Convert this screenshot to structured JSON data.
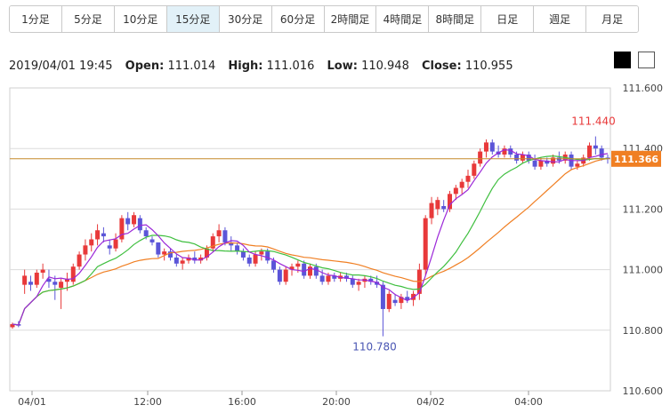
{
  "timeframes": [
    {
      "label": "1分足"
    },
    {
      "label": "5分足"
    },
    {
      "label": "10分足"
    },
    {
      "label": "15分足",
      "active": true
    },
    {
      "label": "30分足"
    },
    {
      "label": "60分足"
    },
    {
      "label": "2時間足"
    },
    {
      "label": "4時間足"
    },
    {
      "label": "8時間足"
    },
    {
      "label": "日足"
    },
    {
      "label": "週足"
    },
    {
      "label": "月足"
    }
  ],
  "ohlc": {
    "datetime": "2019/04/01 19:45",
    "open_label": "Open:",
    "open": "111.014",
    "high_label": "High:",
    "high": "111.016",
    "low_label": "Low:",
    "low": "110.948",
    "close_label": "Close:",
    "close": "110.955"
  },
  "theme_buttons": [
    "black-theme",
    "white-theme"
  ],
  "chart_data": {
    "type": "candlestick",
    "ylim": [
      110.6,
      111.6
    ],
    "y_ticks": [
      "111.600",
      "111.400",
      "111.200",
      "111.000",
      "110.800",
      "110.600"
    ],
    "x_ticks": [
      "04/01",
      "12:00",
      "16:00",
      "20:00",
      "04/02",
      "04:00"
    ],
    "current_price": "111.366",
    "high_annotation": "111.440",
    "low_annotation": "110.780",
    "colors": {
      "up": "#e8393a",
      "down": "#5b55d8",
      "ma_short": "#9b27d8",
      "ma_mid": "#3fbf3f",
      "ma_long": "#f07f23",
      "price_line": "#c58a2a",
      "price_tag": "#f07f23"
    },
    "candles": [
      [
        110.81,
        110.825,
        110.805,
        110.82
      ],
      [
        110.82,
        110.83,
        110.81,
        110.815
      ],
      [
        110.95,
        111.0,
        110.92,
        110.98
      ],
      [
        110.96,
        110.98,
        110.93,
        110.95
      ],
      [
        110.95,
        111.0,
        110.94,
        110.99
      ],
      [
        110.99,
        111.02,
        110.97,
        111.0
      ],
      [
        110.97,
        111.0,
        110.94,
        110.96
      ],
      [
        110.96,
        110.98,
        110.9,
        110.95
      ],
      [
        110.94,
        110.97,
        110.87,
        110.96
      ],
      [
        110.96,
        110.99,
        110.93,
        110.97
      ],
      [
        110.96,
        111.02,
        110.95,
        111.01
      ],
      [
        111.01,
        111.06,
        111.0,
        111.05
      ],
      [
        111.05,
        111.1,
        111.03,
        111.08
      ],
      [
        111.08,
        111.12,
        111.06,
        111.1
      ],
      [
        111.1,
        111.15,
        111.08,
        111.13
      ],
      [
        111.12,
        111.14,
        111.09,
        111.11
      ],
      [
        111.08,
        111.1,
        111.05,
        111.07
      ],
      [
        111.07,
        111.12,
        111.06,
        111.1
      ],
      [
        111.1,
        111.18,
        111.09,
        111.17
      ],
      [
        111.17,
        111.19,
        111.13,
        111.15
      ],
      [
        111.15,
        111.19,
        111.14,
        111.18
      ],
      [
        111.17,
        111.18,
        111.12,
        111.13
      ],
      [
        111.13,
        111.14,
        111.1,
        111.11
      ],
      [
        111.1,
        111.11,
        111.08,
        111.09
      ],
      [
        111.09,
        111.09,
        111.04,
        111.05
      ],
      [
        111.05,
        111.07,
        111.03,
        111.06
      ],
      [
        111.06,
        111.07,
        111.03,
        111.04
      ],
      [
        111.04,
        111.05,
        111.01,
        111.02
      ],
      [
        111.02,
        111.04,
        111.0,
        111.03
      ],
      [
        111.03,
        111.05,
        111.02,
        111.04
      ],
      [
        111.04,
        111.06,
        111.02,
        111.03
      ],
      [
        111.03,
        111.05,
        111.02,
        111.04
      ],
      [
        111.04,
        111.08,
        111.03,
        111.07
      ],
      [
        111.07,
        111.12,
        111.06,
        111.11
      ],
      [
        111.11,
        111.15,
        111.09,
        111.13
      ],
      [
        111.13,
        111.14,
        111.08,
        111.09
      ],
      [
        111.09,
        111.11,
        111.06,
        111.08
      ],
      [
        111.08,
        111.09,
        111.05,
        111.06
      ],
      [
        111.06,
        111.07,
        111.03,
        111.04
      ],
      [
        111.04,
        111.05,
        111.01,
        111.02
      ],
      [
        111.02,
        111.06,
        111.01,
        111.05
      ],
      [
        111.05,
        111.07,
        111.03,
        111.06
      ],
      [
        111.06,
        111.07,
        111.02,
        111.03
      ],
      [
        111.03,
        111.04,
        110.99,
        111.0
      ],
      [
        111.0,
        111.01,
        110.95,
        110.96
      ],
      [
        110.96,
        111.01,
        110.95,
        111.0
      ],
      [
        111.0,
        111.02,
        110.98,
        111.01
      ],
      [
        111.01,
        111.03,
        110.99,
        111.02
      ],
      [
        111.02,
        111.03,
        110.97,
        110.98
      ],
      [
        110.98,
        111.02,
        110.97,
        111.01
      ],
      [
        111.01,
        111.02,
        110.97,
        110.98
      ],
      [
        110.98,
        111.0,
        110.95,
        110.96
      ],
      [
        110.96,
        110.99,
        110.95,
        110.98
      ],
      [
        110.98,
        110.99,
        110.96,
        110.97
      ],
      [
        110.97,
        110.99,
        110.96,
        110.98
      ],
      [
        110.98,
        110.99,
        110.96,
        110.97
      ],
      [
        110.97,
        110.98,
        110.94,
        110.95
      ],
      [
        110.95,
        110.97,
        110.93,
        110.96
      ],
      [
        110.96,
        110.98,
        110.94,
        110.97
      ],
      [
        110.97,
        110.98,
        110.95,
        110.96
      ],
      [
        110.96,
        110.98,
        110.94,
        110.95
      ],
      [
        110.95,
        110.96,
        110.78,
        110.87
      ],
      [
        110.87,
        110.93,
        110.86,
        110.92
      ],
      [
        110.9,
        110.92,
        110.88,
        110.89
      ],
      [
        110.89,
        110.92,
        110.87,
        110.91
      ],
      [
        110.91,
        110.93,
        110.89,
        110.9
      ],
      [
        110.9,
        110.93,
        110.88,
        110.92
      ],
      [
        110.92,
        111.02,
        110.9,
        111.0
      ],
      [
        111.0,
        111.18,
        110.98,
        111.17
      ],
      [
        111.17,
        111.24,
        111.15,
        111.22
      ],
      [
        111.2,
        111.24,
        111.18,
        111.23
      ],
      [
        111.21,
        111.23,
        111.19,
        111.2
      ],
      [
        111.2,
        111.26,
        111.19,
        111.25
      ],
      [
        111.25,
        111.28,
        111.23,
        111.27
      ],
      [
        111.27,
        111.3,
        111.25,
        111.29
      ],
      [
        111.29,
        111.33,
        111.27,
        111.31
      ],
      [
        111.31,
        111.36,
        111.3,
        111.35
      ],
      [
        111.35,
        111.4,
        111.34,
        111.39
      ],
      [
        111.39,
        111.43,
        111.37,
        111.42
      ],
      [
        111.42,
        111.43,
        111.38,
        111.39
      ],
      [
        111.39,
        111.41,
        111.37,
        111.38
      ],
      [
        111.38,
        111.41,
        111.37,
        111.4
      ],
      [
        111.4,
        111.41,
        111.37,
        111.38
      ],
      [
        111.38,
        111.39,
        111.35,
        111.36
      ],
      [
        111.36,
        111.39,
        111.35,
        111.38
      ],
      [
        111.38,
        111.39,
        111.35,
        111.36
      ],
      [
        111.36,
        111.38,
        111.33,
        111.34
      ],
      [
        111.34,
        111.37,
        111.33,
        111.36
      ],
      [
        111.36,
        111.37,
        111.34,
        111.35
      ],
      [
        111.35,
        111.38,
        111.34,
        111.37
      ],
      [
        111.37,
        111.39,
        111.35,
        111.36
      ],
      [
        111.36,
        111.39,
        111.35,
        111.38
      ],
      [
        111.38,
        111.39,
        111.33,
        111.34
      ],
      [
        111.34,
        111.36,
        111.33,
        111.35
      ],
      [
        111.35,
        111.38,
        111.34,
        111.37
      ],
      [
        111.37,
        111.42,
        111.36,
        111.41
      ],
      [
        111.41,
        111.44,
        111.38,
        111.4
      ],
      [
        111.4,
        111.41,
        111.36,
        111.37
      ],
      [
        111.37,
        111.38,
        111.35,
        111.366
      ]
    ]
  }
}
